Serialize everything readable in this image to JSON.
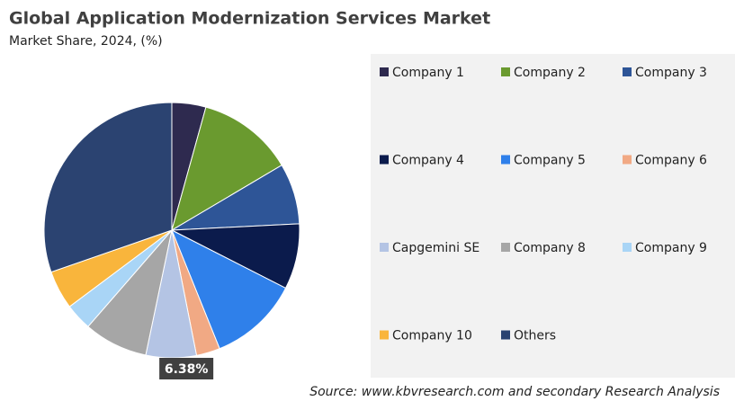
{
  "chart_data": {
    "type": "pie",
    "title": "Global Application Modernization Services Market",
    "subtitle": "Market Share, 2024, (%)",
    "source": "Source: www.kbvresearch.com and secondary Research Analysis",
    "categories": [
      "Company 1",
      "Company 2",
      "Company 3",
      "Company 4",
      "Company 5",
      "Company 6",
      "Capgemini SE",
      "Company 8",
      "Company 9",
      "Company 10",
      "Others"
    ],
    "values": [
      4.3,
      12.2,
      7.7,
      8.3,
      11.4,
      3.0,
      6.38,
      8.1,
      3.4,
      4.9,
      30.32
    ],
    "value_labels": [
      null,
      null,
      null,
      null,
      null,
      null,
      "6.38%",
      null,
      null,
      null,
      null
    ],
    "colors": [
      "#2e2a4f",
      "#6a9a2f",
      "#2e5597",
      "#0b1b4c",
      "#2f80ea",
      "#f1a984",
      "#b4c4e4",
      "#a6a6a6",
      "#a9d5f6",
      "#f9b53c",
      "#2b4371"
    ],
    "legend": "right"
  }
}
